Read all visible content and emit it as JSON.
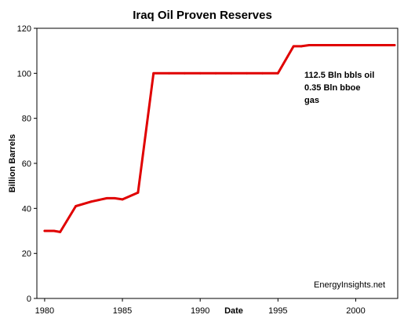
{
  "chart_data": {
    "type": "line",
    "title": "Iraq Oil Proven Reserves",
    "xlabel": "Date",
    "ylabel": "Billion Barrels",
    "xlim": [
      1979.5,
      2002.7
    ],
    "ylim": [
      0,
      120
    ],
    "x_ticks": [
      1980,
      1985,
      1990,
      1995,
      2000
    ],
    "y_ticks": [
      0,
      20,
      40,
      60,
      80,
      100,
      120
    ],
    "grid": false,
    "legend": "none",
    "series": [
      {
        "color": "#e00000",
        "x": [
          1980,
          1980.6,
          1981,
          1982,
          1983,
          1984,
          1984.5,
          1985,
          1986,
          1987,
          1988,
          1989,
          1990,
          1991,
          1992,
          1993,
          1994,
          1995,
          1996,
          1996.5,
          1997,
          1998,
          1999,
          2000,
          2001,
          2002,
          2002.5
        ],
        "y": [
          30,
          30,
          29.5,
          41,
          43,
          44.5,
          44.5,
          44,
          47,
          100,
          100,
          100,
          100,
          100,
          100,
          100,
          100,
          100,
          112,
          112,
          112.5,
          112.5,
          112.5,
          112.5,
          112.5,
          112.5,
          112.5
        ]
      }
    ],
    "annotations": [
      {
        "lines": [
          "112.5 Bln bbls oil",
          "0.35 Bln bboe",
          "gas"
        ]
      }
    ],
    "credit": "EnergyInsights.net"
  }
}
